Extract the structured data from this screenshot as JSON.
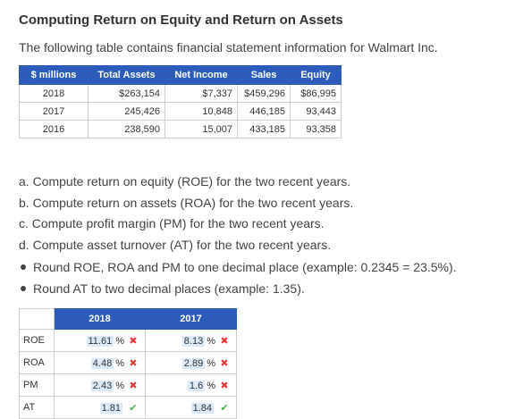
{
  "title": "Computing Return on Equity and Return on Assets",
  "intro": "The following table contains financial statement information for Walmart Inc.",
  "fin_table": {
    "headers": [
      "$ millions",
      "Total Assets",
      "Net Income",
      "Sales",
      "Equity"
    ],
    "rows": [
      [
        "2018",
        "$263,154",
        "$7,337",
        "$459,296",
        "$86,995"
      ],
      [
        "2017",
        "245,426",
        "10,848",
        "446,185",
        "93,443"
      ],
      [
        "2016",
        "238,590",
        "15,007",
        "433,185",
        "93,358"
      ]
    ]
  },
  "questions": [
    "a. Compute return on equity (ROE) for the two recent years.",
    "b. Compute return on assets (ROA) for the two recent years.",
    "c. Compute profit margin (PM) for the two recent years.",
    "d. Compute asset turnover (AT) for the two recent years."
  ],
  "bullets": [
    "Round ROE, ROA and PM to one decimal place (example: 0.2345 = 23.5%).",
    "Round AT to two decimal places (example: 1.35)."
  ],
  "answer_table": {
    "headers": [
      "2018",
      "2017"
    ],
    "rows": [
      {
        "label": "ROE",
        "v2018": "11.61",
        "u2018": "%",
        "m2018": "✖",
        "v2017": "8.13",
        "u2017": "%",
        "m2017": "✖"
      },
      {
        "label": "ROA",
        "v2018": "4.48",
        "u2018": "%",
        "m2018": "✖",
        "v2017": "2.89",
        "u2017": "%",
        "m2017": "✖"
      },
      {
        "label": "PM",
        "v2018": "2.43",
        "u2018": "%",
        "m2018": "✖",
        "v2017": "1.6",
        "u2017": "%",
        "m2017": "✖"
      },
      {
        "label": "AT",
        "v2018": "1.81",
        "u2018": "",
        "m2018": "✔",
        "v2017": "1.84",
        "u2017": "",
        "m2017": "✔"
      }
    ]
  },
  "colors": {
    "header_bg": "#2d5bb9",
    "wrong": "#e03b3b",
    "correct": "#4caf50",
    "answer_bg": "#dbeaf8"
  }
}
